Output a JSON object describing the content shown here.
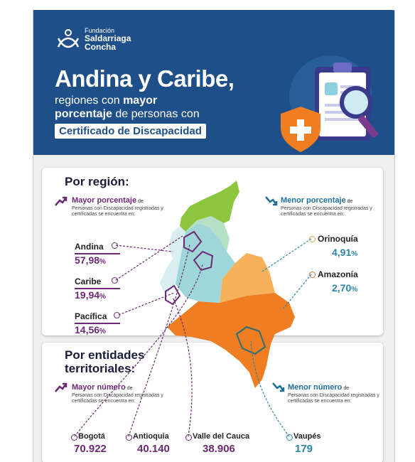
{
  "brand": {
    "line1": "Fundación",
    "line2": "Saldarriaga",
    "line3": "Concha"
  },
  "header": {
    "title": "Andina y Caribe,",
    "subtitle_pre": "regiones con ",
    "subtitle_b1": "mayor",
    "subtitle_b2": "porcentaje",
    "subtitle_post": " de personas con",
    "badge": "Certificado de Discapacidad"
  },
  "region_section": {
    "title": "Por región:",
    "high_label": "Mayor porcentaje",
    "high_suffix": " de",
    "high_desc": "Personas con Discapacidad registradas y certificadas se encuentra en:",
    "low_label": "Menor porcentaje",
    "low_suffix": " de",
    "low_desc": "Personas con Discapacidad registradas y certificadas se encuentra en:",
    "high_regions": [
      {
        "name": "Andina",
        "value": "57,98",
        "unit": "%"
      },
      {
        "name": "Caribe",
        "value": "19,94",
        "unit": "%"
      },
      {
        "name": "Pacífica",
        "value": "14,56",
        "unit": "%"
      }
    ],
    "low_regions": [
      {
        "name": "Orinoquía",
        "value": "4,91",
        "unit": "%"
      },
      {
        "name": "Amazonía",
        "value": "2,70",
        "unit": "%"
      }
    ]
  },
  "entity_section": {
    "title_line1": "Por entidades",
    "title_line2": "territoriales:",
    "high_label": "Mayor número",
    "high_suffix": " de",
    "high_desc": "Personas con Discapacidad registradas y certificadas se encuentra en:",
    "low_label": "Menor número",
    "low_suffix": " de",
    "low_desc": "Personas con Discapacidad registradas y certificadas se encuentra en:",
    "entities": [
      {
        "name": "Bogotá",
        "value": "70.922"
      },
      {
        "name": "Antioquia",
        "value": "40.140"
      },
      {
        "name": "Valle del Cauca",
        "value": "38.906"
      }
    ],
    "low_entity": {
      "name": "Vaupés",
      "value": "179"
    }
  },
  "colors": {
    "header_bg": "#1f4f88",
    "purple": "#6b2a73",
    "teal": "#2a86a8",
    "andina_green": "#8cc63f",
    "caribe_teal": "#9fd6da",
    "orinoquia_light_orange": "#f6b15a",
    "amazonia_orange": "#ef7d22"
  },
  "icons": [
    "logo-knot-icon",
    "clipboard-icon",
    "shield-plus-icon",
    "magnifier-icon",
    "trend-up-icon",
    "trend-down-icon"
  ]
}
